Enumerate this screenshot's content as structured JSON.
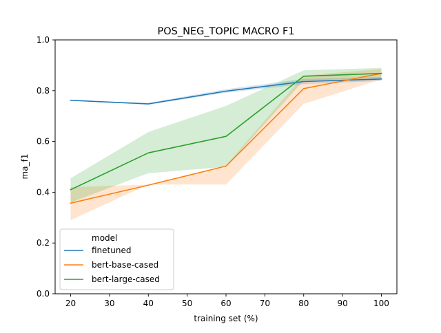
{
  "chart_data": {
    "type": "line",
    "title": "POS_NEG_TOPIC MACRO F1",
    "xlabel": "training set (%)",
    "ylabel": "ma_f1",
    "xlim": [
      16,
      104
    ],
    "ylim": [
      0.0,
      1.0
    ],
    "x_ticks": [
      "20",
      "30",
      "40",
      "50",
      "60",
      "70",
      "80",
      "90",
      "100"
    ],
    "y_ticks": [
      "0.0",
      "0.2",
      "0.4",
      "0.6",
      "0.8",
      "1.0"
    ],
    "grid": false,
    "legend": {
      "title": "model",
      "placement": "lower-left"
    },
    "x": [
      20,
      40,
      60,
      80,
      100
    ],
    "series": [
      {
        "name": "finetuned",
        "color": "#1f77b4",
        "values": [
          0.762,
          0.748,
          0.798,
          0.836,
          0.846
        ],
        "ci_low": [
          0.762,
          0.744,
          0.792,
          0.826,
          0.838
        ],
        "ci_high": [
          0.762,
          0.752,
          0.806,
          0.846,
          0.854
        ]
      },
      {
        "name": "bert-base-cased",
        "color": "#ff7f0e",
        "values": [
          0.357,
          0.428,
          0.503,
          0.808,
          0.868
        ],
        "ci_low": [
          0.29,
          0.43,
          0.43,
          0.748,
          0.845
        ],
        "ci_high": [
          0.42,
          0.43,
          0.505,
          0.86,
          0.885
        ]
      },
      {
        "name": "bert-large-cased",
        "color": "#2ca02c",
        "values": [
          0.41,
          0.555,
          0.62,
          0.857,
          0.868
        ],
        "ci_low": [
          0.36,
          0.475,
          0.5,
          0.84,
          0.85
        ],
        "ci_high": [
          0.455,
          0.637,
          0.74,
          0.88,
          0.89
        ]
      }
    ]
  }
}
